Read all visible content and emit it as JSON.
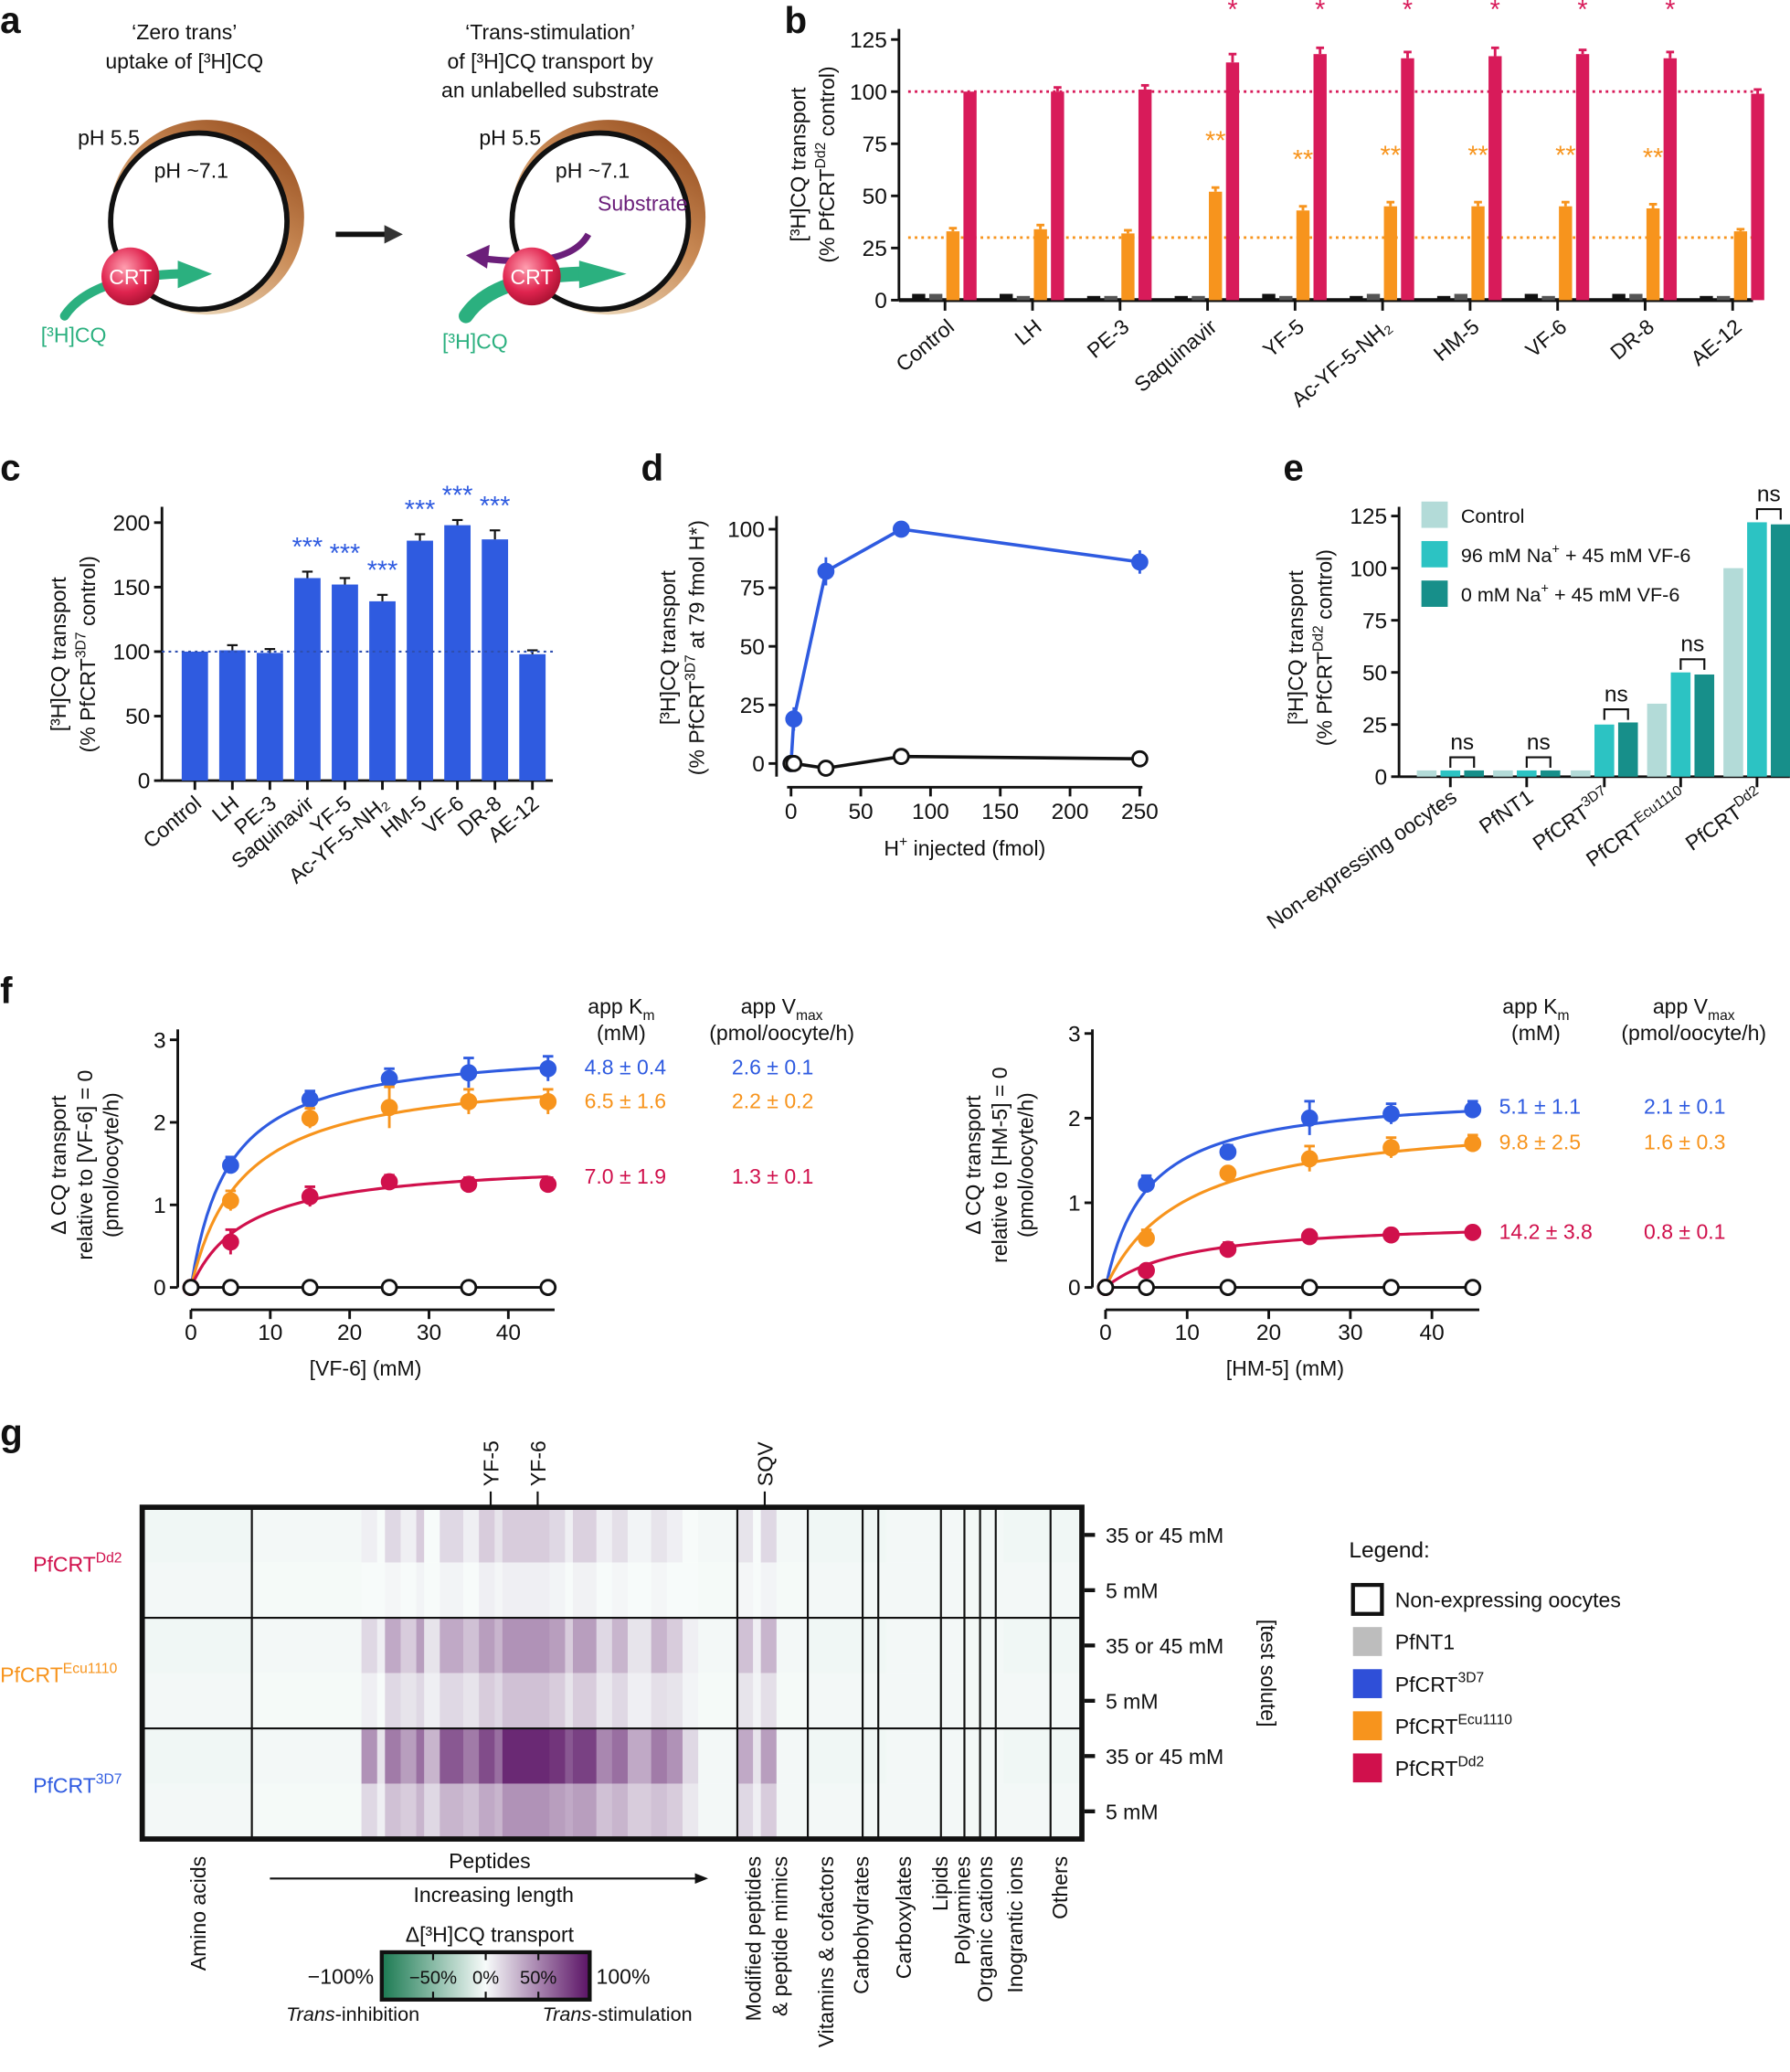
{
  "panel_labels": {
    "a": "a",
    "b": "b",
    "c": "c",
    "d": "d",
    "e": "e",
    "f": "f",
    "g": "g"
  },
  "panel_a": {
    "left_title": [
      "‘Zero trans’",
      "uptake of [³H]CQ"
    ],
    "right_title": [
      "‘Trans-stimulation’",
      "of [³H]CQ transport by",
      "an unlabelled substrate"
    ],
    "ph_out": "pH 5.5",
    "ph_in": "pH ~7.1",
    "crt": "CRT",
    "cq": "[³H]CQ",
    "substrate": "Substrate",
    "colors": {
      "crt": "#d81b4a",
      "cq": "#2bb07f",
      "substrate": "#6b1f7a",
      "ring": "#9a4a1c"
    }
  },
  "legend_g": {
    "title": "Legend:",
    "items": [
      {
        "base": "Non-expressing oocytes",
        "sup": "",
        "color": "#ffffff",
        "outline": true
      },
      {
        "base": "PfNT1",
        "sup": "",
        "color": "#bdbdbd"
      },
      {
        "base": "PfCRT",
        "sup": "3D7",
        "color": "#2f4fd8"
      },
      {
        "base": "PfCRT",
        "sup": "Ecu1110",
        "color": "#f7941d"
      },
      {
        "base": "PfCRT",
        "sup": "Dd2",
        "color": "#d0104c"
      }
    ]
  },
  "chart_data": [
    {
      "panel": "b",
      "type": "bar",
      "categories": [
        "Control",
        "LH",
        "PE-3",
        "Saquinavir",
        "YF-5",
        "Ac-YF-5-NH₂",
        "HM-5",
        "VF-6",
        "DR-8",
        "AE-12"
      ],
      "series": [
        {
          "color": "#111111",
          "values": [
            3,
            3,
            2,
            2,
            3,
            2,
            2,
            3,
            3,
            2
          ]
        },
        {
          "color": "#555555",
          "values": [
            3,
            2,
            2,
            2,
            2,
            3,
            3,
            2,
            3,
            2
          ]
        },
        {
          "color": "#f7941d",
          "values": [
            33,
            34,
            32,
            52,
            43,
            45,
            45,
            45,
            44,
            33
          ],
          "errors": [
            1.5,
            2,
            1.5,
            2,
            2,
            2,
            2,
            2,
            2,
            1
          ],
          "stars": [
            "",
            "",
            "",
            "**",
            "**",
            "**",
            "**",
            "**",
            "**",
            ""
          ]
        },
        {
          "color": "#d81b5a",
          "values": [
            100,
            100,
            101,
            114,
            118,
            116,
            117,
            118,
            116,
            99
          ],
          "errors": [
            0,
            2,
            2,
            4,
            3,
            3,
            4,
            2,
            3,
            2
          ],
          "stars": [
            "",
            "",
            "",
            "*",
            "*",
            "*",
            "*",
            "*",
            "*",
            ""
          ]
        }
      ],
      "ylabel": {
        "line1": "[³H]CQ transport",
        "line2": {
          "base": "(% PfCRT",
          "sup": "Dd2",
          "end": " control)"
        }
      },
      "ylim": [
        0,
        125
      ],
      "yticks": [
        "0",
        "25",
        "50",
        "75",
        "100",
        "125"
      ],
      "reference_lines": [
        {
          "value": 100,
          "color": "#d81b5a"
        },
        {
          "value": 30,
          "color": "#f7941d"
        }
      ]
    },
    {
      "panel": "c",
      "type": "bar",
      "categories": [
        "Control",
        "LH",
        "PE-3",
        "Saquinavir",
        "YF-5",
        "Ac-YF-5-NH₂",
        "HM-5",
        "VF-6",
        "DR-8",
        "AE-12"
      ],
      "color": "#2f5be0",
      "values": [
        100,
        101,
        99,
        157,
        152,
        139,
        186,
        198,
        187,
        98
      ],
      "errors": [
        0,
        4,
        3,
        5,
        5,
        5,
        5,
        4,
        7,
        3
      ],
      "stars": [
        "",
        "",
        "",
        "***",
        "***",
        "***",
        "***",
        "***",
        "***",
        ""
      ],
      "ylabel": {
        "line1": "[³H]CQ transport",
        "line2": {
          "base": "(% PfCRT",
          "sup": "3D7",
          "end": " control)"
        }
      },
      "ylim": [
        0,
        200
      ],
      "yticks": [
        "0",
        "50",
        "100",
        "150",
        "200"
      ],
      "reference_line": 100
    },
    {
      "panel": "d",
      "type": "line",
      "series": [
        {
          "color": "#2f5be0",
          "filled": true,
          "x": [
            0,
            2,
            25,
            79,
            250
          ],
          "y": [
            0,
            19,
            82,
            100,
            86
          ],
          "errors": [
            0,
            5,
            6,
            0,
            5
          ]
        },
        {
          "color": "#111111",
          "filled": false,
          "x": [
            0,
            2,
            25,
            79,
            250
          ],
          "y": [
            0,
            0,
            -2,
            3,
            2
          ],
          "errors": [
            0,
            0,
            0,
            0,
            0
          ]
        }
      ],
      "xlabel": {
        "base": "H",
        "sup": "+",
        "end": " injected (fmol)"
      },
      "ylabel": {
        "line1": "[³H]CQ transport",
        "line2": {
          "base": "(% PfCRT",
          "sup": "3D7",
          "end": " at 79 fmol H*)"
        }
      },
      "xlim": [
        0,
        250
      ],
      "ylim": [
        0,
        100
      ],
      "xticks": [
        "0",
        "50",
        "100",
        "150",
        "200",
        "250"
      ],
      "yticks": [
        "0",
        "25",
        "50",
        "75",
        "100"
      ]
    },
    {
      "panel": "e",
      "type": "bar",
      "categories": [
        {
          "base": "Non-expressing oocytes",
          "sup": ""
        },
        {
          "base": "PfNT1",
          "sup": ""
        },
        {
          "base": "PfCRT",
          "sup": "3D7"
        },
        {
          "base": "PfCRT",
          "sup": "Ecu1110"
        },
        {
          "base": "PfCRT",
          "sup": "Dd2"
        }
      ],
      "series": [
        {
          "label": {
            "base": "Control",
            "sup": "",
            "end": ""
          },
          "color": "#b3dbd8",
          "values": [
            3,
            3,
            3,
            35,
            100
          ]
        },
        {
          "label": {
            "base": "96 mM Na",
            "sup": "+",
            "end": " + 45 mM VF-6"
          },
          "color": "#2cc3c3",
          "values": [
            3,
            3,
            25,
            50,
            122
          ]
        },
        {
          "label": {
            "base": "0 mM Na",
            "sup": "+",
            "end": " + 45 mM VF-6"
          },
          "color": "#178f8a",
          "values": [
            3,
            3,
            26,
            49,
            121
          ]
        }
      ],
      "significance": [
        "ns",
        "ns",
        "ns",
        "ns",
        "ns"
      ],
      "ylabel": {
        "line1": "[³H]CQ transport",
        "line2": {
          "base": "(% PfCRT",
          "sup": "Dd2",
          "end": " control)"
        }
      },
      "ylim": [
        0,
        125
      ],
      "yticks": [
        "0",
        "25",
        "50",
        "75",
        "100",
        "125"
      ]
    },
    {
      "panel": "f-left",
      "type": "scatter",
      "x": [
        0,
        5,
        15,
        25,
        35,
        45
      ],
      "series": [
        {
          "color": "#2f5be0",
          "filled": true,
          "y": [
            0,
            1.48,
            2.28,
            2.53,
            2.6,
            2.65
          ],
          "errors": [
            0,
            0.1,
            0.1,
            0.12,
            0.18,
            0.15
          ],
          "km": "4.8 ± 0.4",
          "vmax": "2.6 ± 0.1",
          "fit": [
            4.8,
            2.95
          ]
        },
        {
          "color": "#f7941d",
          "filled": true,
          "y": [
            0,
            1.05,
            2.05,
            2.18,
            2.25,
            2.25
          ],
          "errors": [
            0,
            0.12,
            0.12,
            0.25,
            0.15,
            0.15
          ],
          "km": "6.5 ± 1.6",
          "vmax": "2.2 ± 0.2",
          "fit": [
            6.5,
            2.65
          ]
        },
        {
          "color": "#d0104c",
          "filled": true,
          "y": [
            0,
            0.55,
            1.1,
            1.28,
            1.25,
            1.25
          ],
          "errors": [
            0,
            0.15,
            0.12,
            0.08,
            0.08,
            0.08
          ],
          "km": "7.0 ± 1.9",
          "vmax": "1.3 ± 0.1",
          "fit": [
            7.0,
            1.55
          ]
        },
        {
          "color": "#111111",
          "filled": false,
          "y": [
            0,
            0,
            0,
            0,
            0,
            0
          ],
          "errors": [
            0,
            0,
            0,
            0,
            0,
            0
          ]
        }
      ],
      "xlabel": "[VF-6] (mM)",
      "ylabel": [
        "Δ CQ transport",
        "relative to [VF-6] = 0",
        "(pmol/oocyte/h)"
      ],
      "xticks": [
        "0",
        "10",
        "20",
        "30",
        "40"
      ],
      "yticks": [
        "0",
        "1",
        "2",
        "3"
      ],
      "xlim": [
        0,
        45
      ],
      "ylim": [
        0,
        3
      ],
      "table_headers": {
        "km": {
          "base": "app K",
          "sub": "m",
          "unit": "(mM)"
        },
        "vmax": {
          "base": "app V",
          "sub": "max",
          "unit": "(pmol/oocyte/h)"
        }
      }
    },
    {
      "panel": "f-right",
      "type": "scatter",
      "x": [
        0,
        5,
        15,
        25,
        35,
        45
      ],
      "series": [
        {
          "color": "#2f5be0",
          "filled": true,
          "y": [
            0,
            1.22,
            1.6,
            2.0,
            2.05,
            2.1
          ],
          "errors": [
            0,
            0.1,
            0.08,
            0.2,
            0.12,
            0.1
          ],
          "km": "5.1 ± 1.1",
          "vmax": "2.1 ± 0.1",
          "fit": [
            5.1,
            2.32
          ]
        },
        {
          "color": "#f7941d",
          "filled": true,
          "y": [
            0,
            0.58,
            1.35,
            1.52,
            1.65,
            1.7
          ],
          "errors": [
            0,
            0.1,
            0.06,
            0.15,
            0.12,
            0.1
          ],
          "km": "9.8 ± 2.5",
          "vmax": "1.6 ± 0.3",
          "fit": [
            9.8,
            2.05
          ]
        },
        {
          "color": "#d0104c",
          "filled": true,
          "y": [
            0,
            0.2,
            0.45,
            0.6,
            0.62,
            0.65
          ],
          "errors": [
            0,
            0.03,
            0.08,
            0.03,
            0.03,
            0.03
          ],
          "km": "14.2 ± 3.8",
          "vmax": "0.8 ± 0.1",
          "fit": [
            10,
            0.8
          ]
        },
        {
          "color": "#111111",
          "filled": false,
          "y": [
            0,
            0,
            0,
            0,
            0,
            0
          ],
          "errors": [
            0,
            0,
            0,
            0,
            0,
            0
          ]
        }
      ],
      "xlabel": "[HM-5] (mM)",
      "ylabel": [
        "Δ CQ transport",
        "relative to [HM-5] = 0",
        "(pmol/oocyte/h)"
      ],
      "xticks": [
        "0",
        "10",
        "20",
        "30",
        "40"
      ],
      "yticks": [
        "0",
        "1",
        "2",
        "3"
      ],
      "xlim": [
        0,
        45
      ],
      "ylim": [
        0,
        3
      ],
      "table_headers": {
        "km": {
          "base": "app K",
          "sub": "m",
          "unit": "(mM)"
        },
        "vmax": {
          "base": "app V",
          "sub": "max",
          "unit": "(pmol/oocyte/h)"
        }
      }
    },
    {
      "panel": "g",
      "type": "heatmap",
      "row_groups": [
        {
          "base": "PfCRT",
          "sup": "Dd2",
          "color": "#d0104c"
        },
        {
          "base": "PfCRT",
          "sup": "Ecu1110",
          "color": "#f7941d"
        },
        {
          "base": "PfCRT",
          "sup": "3D7",
          "color": "#2f5be0"
        }
      ],
      "row_sublabels": [
        "35 or 45 mM",
        "5 mM",
        "35 or 45 mM",
        "5 mM",
        "35 or 45 mM",
        "5 mM"
      ],
      "side_label": "[test solute]",
      "categories": [
        {
          "label": [
            "Amino acids"
          ],
          "columns": 14
        },
        {
          "label": [
            "Peptides"
          ],
          "columns": 62
        },
        {
          "label": [
            "Modified peptides",
            "& peptide mimics"
          ],
          "columns": 9
        },
        {
          "label": [
            "Vitamins & cofactors"
          ],
          "columns": 7
        },
        {
          "label": [
            "Carbohydrates"
          ],
          "columns": 2
        },
        {
          "label": [
            "Carboxylates"
          ],
          "columns": 8
        },
        {
          "label": [
            "Lipids"
          ],
          "columns": 3
        },
        {
          "label": [
            "Polyamines"
          ],
          "columns": 2
        },
        {
          "label": [
            "Organic cations"
          ],
          "columns": 2
        },
        {
          "label": [
            "Inograntic ions"
          ],
          "columns": 7
        },
        {
          "label": [
            "Others"
          ],
          "columns": 4
        }
      ],
      "peptide_note": {
        "title": "Peptides",
        "subtitle": "Increasing length"
      },
      "markers": [
        {
          "label": "YF-5",
          "column": 44
        },
        {
          "label": "YF-6",
          "column": 50
        },
        {
          "label": "SQV",
          "column": 79
        }
      ],
      "segments": [
        [
          14,
          -3,
          -2,
          -3,
          -2,
          -3,
          -2
        ],
        [
          14,
          -2,
          -1,
          -2,
          -1,
          -2,
          -1
        ],
        [
          2,
          5,
          0,
          15,
          5,
          45,
          15
        ],
        [
          1,
          0,
          0,
          5,
          0,
          10,
          5
        ],
        [
          2,
          15,
          2,
          35,
          15,
          55,
          25
        ],
        [
          2,
          5,
          0,
          20,
          10,
          40,
          20
        ],
        [
          1,
          20,
          3,
          40,
          15,
          60,
          30
        ],
        [
          2,
          0,
          0,
          10,
          5,
          30,
          15
        ],
        [
          3,
          15,
          3,
          35,
          15,
          70,
          30
        ],
        [
          2,
          5,
          0,
          25,
          10,
          55,
          25
        ],
        [
          2,
          20,
          5,
          40,
          20,
          75,
          35
        ],
        [
          1,
          10,
          2,
          30,
          15,
          60,
          30
        ],
        [
          6,
          20,
          5,
          45,
          25,
          90,
          45
        ],
        [
          2,
          15,
          3,
          40,
          20,
          85,
          40
        ],
        [
          1,
          5,
          0,
          20,
          10,
          70,
          35
        ],
        [
          3,
          18,
          4,
          40,
          20,
          80,
          40
        ],
        [
          2,
          5,
          0,
          15,
          8,
          50,
          25
        ],
        [
          2,
          12,
          2,
          30,
          15,
          60,
          30
        ],
        [
          3,
          3,
          0,
          10,
          5,
          35,
          20
        ],
        [
          2,
          10,
          2,
          30,
          12,
          55,
          25
        ],
        [
          2,
          5,
          0,
          20,
          10,
          45,
          20
        ],
        [
          2,
          0,
          0,
          5,
          3,
          15,
          8
        ],
        [
          5,
          -2,
          -1,
          -2,
          -1,
          -2,
          -2
        ],
        [
          2,
          10,
          2,
          25,
          10,
          35,
          15
        ],
        [
          1,
          0,
          0,
          5,
          3,
          10,
          5
        ],
        [
          2,
          15,
          3,
          30,
          12,
          40,
          20
        ],
        [
          4,
          -2,
          -1,
          -2,
          -1,
          -2,
          -2
        ],
        [
          10,
          -3,
          -2,
          -3,
          -2,
          -3,
          -2
        ],
        [
          15,
          -2,
          -2,
          -2,
          -2,
          -2,
          -2
        ],
        [
          10,
          -3,
          -2,
          -3,
          -2,
          -3,
          -2
        ]
      ],
      "colorbar": {
        "title": "Δ[³H]CQ transport",
        "min_label": "−100%",
        "max_label": "100%",
        "tick_labels": [
          "−50%",
          "0%",
          "50%"
        ],
        "left_caption": {
          "italic": "Trans",
          "rest": "-inhibition"
        },
        "right_caption": {
          "italic": "Trans",
          "rest": "-stimulation"
        },
        "colors": {
          "neg": "#1b7a52",
          "zero": "#f7fbfa",
          "pos": "#5a1265"
        },
        "range": [
          -100,
          100
        ]
      }
    }
  ]
}
